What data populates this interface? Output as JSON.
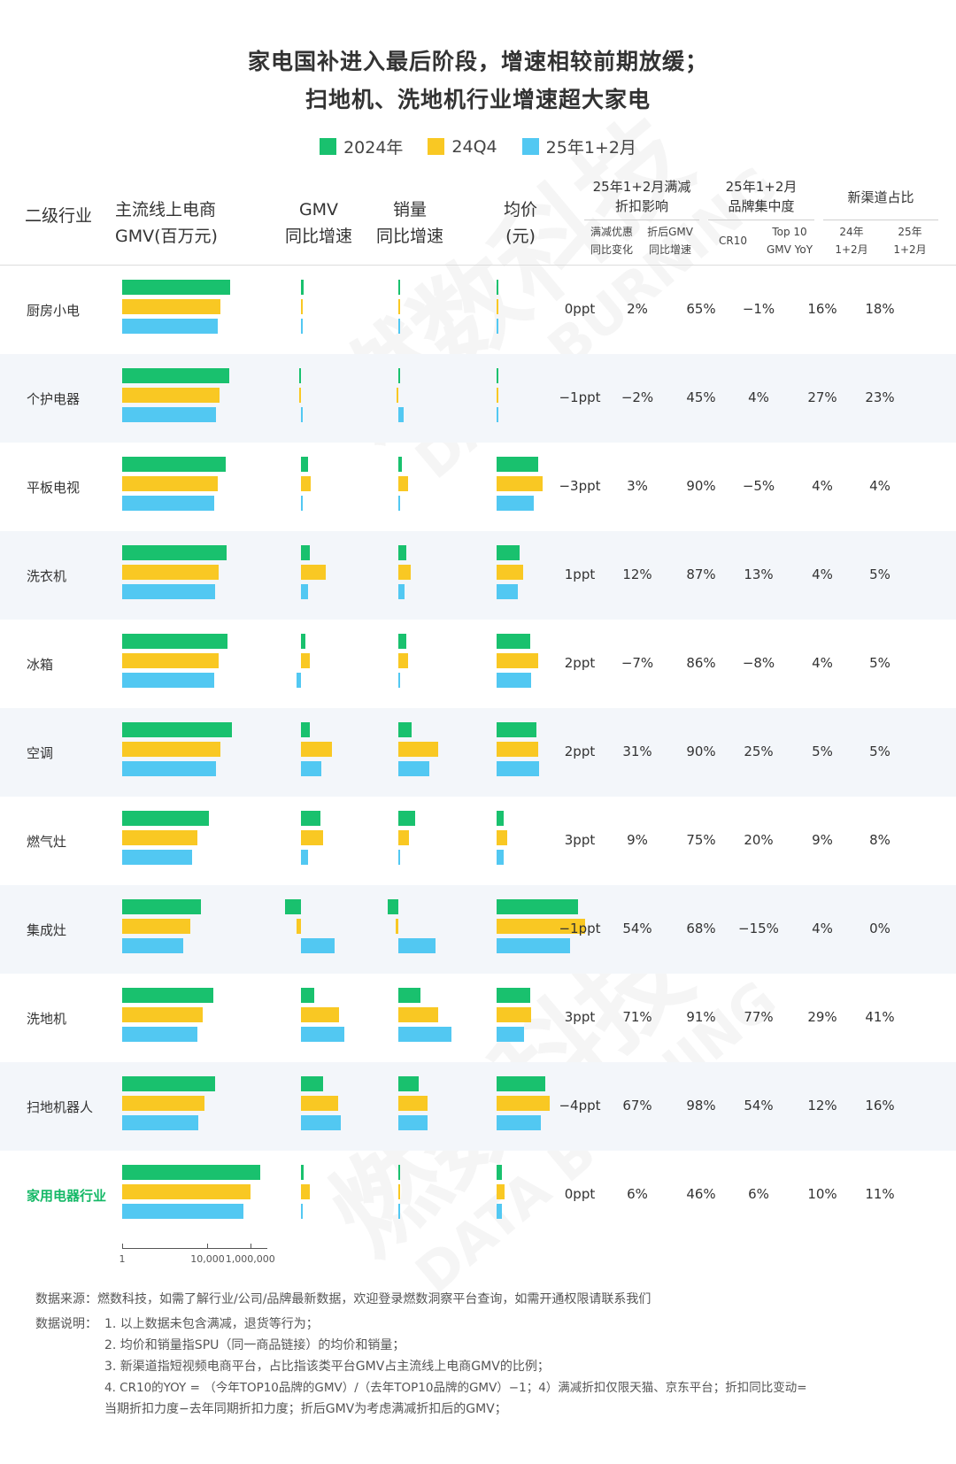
{
  "title_line1": "家电国补进入最后阶段，增速相较前期放缓；",
  "title_line2": "扫地机、洗地机行业增速超大家电",
  "legend": [
    {
      "label": "2024年",
      "color": "#19c16e"
    },
    {
      "label": "24Q4",
      "color": "#f9c823"
    },
    {
      "label": "25年1+2月",
      "color": "#52c8f2"
    }
  ],
  "headers": {
    "industry": "二级行业",
    "gmv_1": "主流线上电商",
    "gmv_2": "GMV(百万元)",
    "gmv_yoy_1": "GMV",
    "gmv_yoy_2": "同比增速",
    "vol_yoy_1": "销量",
    "vol_yoy_2": "同比增速",
    "price_1": "均价",
    "price_2": "(元)",
    "discount_1": "25年1+2月满减",
    "discount_2": "折扣影响",
    "discount_sub1_1": "满减优惠",
    "discount_sub1_2": "同比变化",
    "discount_sub2_1": "折后GMV",
    "discount_sub2_2": "同比增速",
    "brand_1": "25年1+2月",
    "brand_2": "品牌集中度",
    "brand_sub1": "CR10",
    "brand_sub2_1": "Top 10",
    "brand_sub2_2": "GMV YoY",
    "channel": "新渠道占比",
    "channel_sub1_1": "24年",
    "channel_sub1_2": "1+2月",
    "channel_sub2_1": "25年",
    "channel_sub2_2": "1+2月"
  },
  "chart_data": {
    "type": "bar",
    "categories": [
      "厨房小电",
      "个护电器",
      "平板电视",
      "洗衣机",
      "冰箱",
      "空调",
      "燃气灶",
      "集成灶",
      "洗地机",
      "扫地机器人",
      "家用电器行业"
    ],
    "series": [
      {
        "name": "2024年",
        "gmv": [
          110000,
          100000,
          70000,
          80000,
          82000,
          140000,
          12000,
          5000,
          18000,
          22000,
          3000000
        ],
        "gmv_yoy": [
          0.03,
          -0.02,
          0.08,
          0.1,
          0.05,
          0.1,
          0.22,
          -0.18,
          0.15,
          0.25,
          0.03
        ],
        "vol_yoy": [
          0.02,
          0.0,
          0.04,
          0.09,
          0.09,
          0.15,
          0.19,
          -0.12,
          0.25,
          0.23,
          0.0
        ],
        "price": [
          0.01,
          0.01,
          0.4,
          0.22,
          0.32,
          0.38,
          0.07,
          0.78,
          0.32,
          0.47,
          0.05
        ]
      },
      {
        "name": "24Q4",
        "gmv": [
          40000,
          35000,
          30000,
          32000,
          32000,
          40000,
          3500,
          1500,
          6000,
          7000,
          1000000
        ],
        "gmv_yoy": [
          0.01,
          -0.01,
          0.11,
          0.28,
          0.1,
          0.35,
          0.25,
          -0.05,
          0.43,
          0.42,
          0.1
        ],
        "vol_yoy": [
          0.0,
          -0.02,
          0.11,
          0.14,
          0.11,
          0.45,
          0.12,
          -0.03,
          0.45,
          0.33,
          0.0
        ],
        "price": [
          0.02,
          0.02,
          0.44,
          0.25,
          0.4,
          0.4,
          0.1,
          0.85,
          0.33,
          0.51,
          0.08
        ]
      },
      {
        "name": "25年1+2月",
        "gmv": [
          30000,
          25000,
          20000,
          22000,
          21000,
          25000,
          1800,
          700,
          3500,
          3600,
          500000
        ],
        "gmv_yoy": [
          0.02,
          0.0,
          0.01,
          0.08,
          -0.05,
          0.23,
          0.08,
          0.38,
          0.49,
          0.45,
          0.02
        ],
        "vol_yoy": [
          0.02,
          0.06,
          0.0,
          0.07,
          0.0,
          0.35,
          0.0,
          0.42,
          0.6,
          0.33,
          0.0
        ],
        "price": [
          0.01,
          0.02,
          0.36,
          0.2,
          0.33,
          0.41,
          0.07,
          0.7,
          0.26,
          0.42,
          0.05
        ]
      }
    ],
    "gmv_axis": {
      "scale": "log",
      "ticks": [
        "1",
        "10,000",
        "1,000,000"
      ]
    }
  },
  "rows": [
    {
      "label": "厨房小电",
      "d1": "0ppt",
      "d2": "2%",
      "cr10": "65%",
      "top10": "−1%",
      "c24": "16%",
      "c25": "18%"
    },
    {
      "label": "个护电器",
      "d1": "−1ppt",
      "d2": "−2%",
      "cr10": "45%",
      "top10": "4%",
      "c24": "27%",
      "c25": "23%"
    },
    {
      "label": "平板电视",
      "d1": "−3ppt",
      "d2": "3%",
      "cr10": "90%",
      "top10": "−5%",
      "c24": "4%",
      "c25": "4%"
    },
    {
      "label": "洗衣机",
      "d1": "1ppt",
      "d2": "12%",
      "cr10": "87%",
      "top10": "13%",
      "c24": "4%",
      "c25": "5%"
    },
    {
      "label": "冰箱",
      "d1": "2ppt",
      "d2": "−7%",
      "cr10": "86%",
      "top10": "−8%",
      "c24": "4%",
      "c25": "5%"
    },
    {
      "label": "空调",
      "d1": "2ppt",
      "d2": "31%",
      "cr10": "90%",
      "top10": "25%",
      "c24": "5%",
      "c25": "5%"
    },
    {
      "label": "燃气灶",
      "d1": "3ppt",
      "d2": "9%",
      "cr10": "75%",
      "top10": "20%",
      "c24": "9%",
      "c25": "8%"
    },
    {
      "label": "集成灶",
      "d1": "−1ppt",
      "d2": "54%",
      "cr10": "68%",
      "top10": "−15%",
      "c24": "4%",
      "c25": "0%"
    },
    {
      "label": "洗地机",
      "d1": "3ppt",
      "d2": "71%",
      "cr10": "91%",
      "top10": "77%",
      "c24": "29%",
      "c25": "41%"
    },
    {
      "label": "扫地机器人",
      "d1": "−4ppt",
      "d2": "67%",
      "cr10": "98%",
      "top10": "54%",
      "c24": "12%",
      "c25": "16%"
    },
    {
      "label": "家用电器行业",
      "d1": "0ppt",
      "d2": "6%",
      "cr10": "46%",
      "top10": "6%",
      "c24": "10%",
      "c25": "11%"
    }
  ],
  "notes": {
    "source": "数据来源：燃数科技，如需了解行业/公司/品牌最新数据，欢迎登录燃数洞察平台查询，如需开通权限请联系我们",
    "explain_label": "数据说明：",
    "n1": "1. 以上数据未包含满减，退货等行为；",
    "n2": "2. 均价和销量指SPU（同一商品链接）的均价和销量；",
    "n3": "3. 新渠道指短视频电商平台，占比指该类平台GMV占主流线上电商GMV的比例；",
    "n4": "4. CR10的YOY = （今年TOP10品牌的GMV）/（去年TOP10品牌的GMV）−1；4）满减折扣仅限天猫、京东平台；折扣同比变动=",
    "n5": "当期折扣力度−去年同期折扣力度；折后GMV为考虑满减折扣后的GMV；"
  },
  "watermark": {
    "cn": "燃数科技",
    "en": "DATA BURNING"
  }
}
